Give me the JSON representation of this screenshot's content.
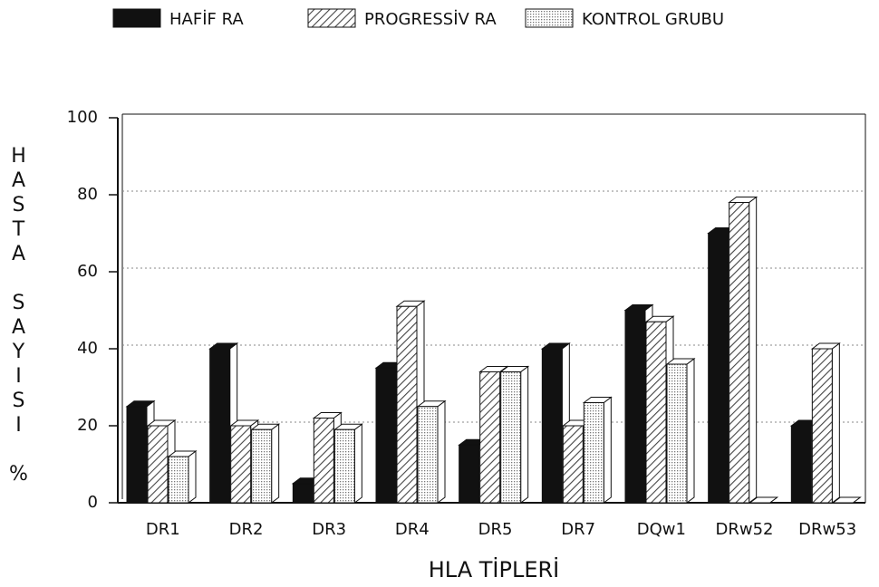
{
  "chart_data": {
    "type": "bar",
    "xlabel": "HLA TİPLERİ",
    "ylabel": "HASTA SAYISI %",
    "categories": [
      "DR1",
      "DR2",
      "DR3",
      "DR4",
      "DR5",
      "DR7",
      "DQw1",
      "DRw52",
      "DRw53"
    ],
    "series": [
      {
        "name": "HAFİF RA",
        "color": "#111111",
        "pattern": "solid",
        "values": [
          25,
          40,
          5,
          35,
          15,
          40,
          50,
          70,
          20
        ]
      },
      {
        "name": "PROGRESSİV RA",
        "color": "#666666",
        "pattern": "hatch",
        "values": [
          20,
          20,
          22,
          51,
          34,
          20,
          47,
          78,
          40
        ]
      },
      {
        "name": "KONTROL GRUBU",
        "color": "#999999",
        "pattern": "dots",
        "values": [
          12,
          19,
          19,
          25,
          34,
          26,
          36,
          0,
          0
        ]
      }
    ],
    "ylim": [
      0,
      100
    ],
    "yticks": [
      0,
      20,
      40,
      60,
      80,
      100
    ],
    "grid": true,
    "legend": "top"
  }
}
